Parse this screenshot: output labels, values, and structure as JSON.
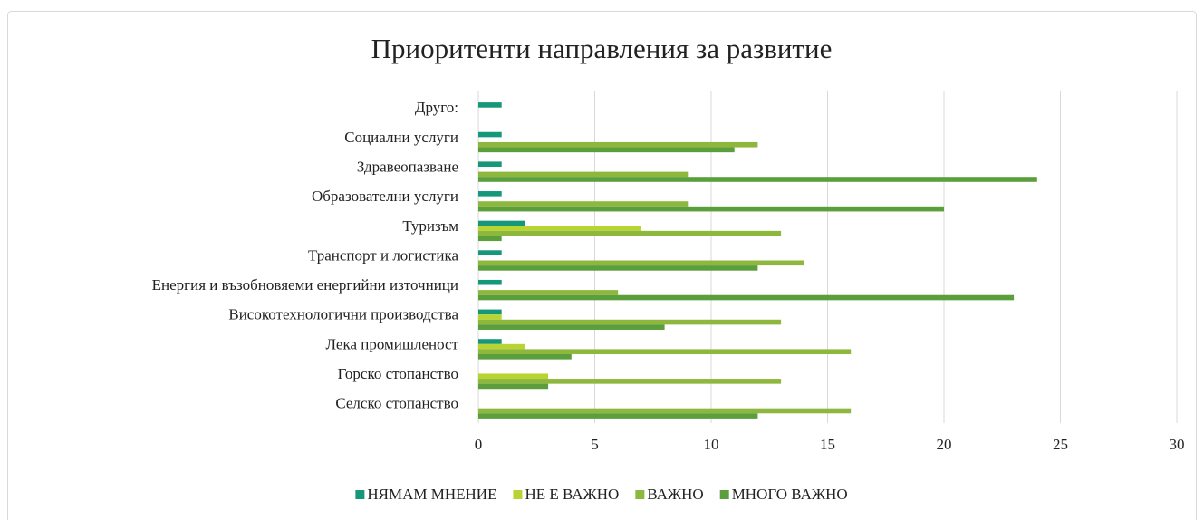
{
  "chart_data": {
    "type": "hbar",
    "title": "Приоритенти направления за развитие",
    "categories": [
      "Друго:",
      "Социални услуги",
      "Здравеопазване",
      "Образователни услуги ",
      "Туризъм",
      "Транспорт и логистика",
      "Енергия и възобновяеми енергийни източници",
      "Високотехнологични производства",
      "Лека промишленост",
      "Горско стопанство",
      "Селско стопанство"
    ],
    "series": [
      {
        "name": "НЯМАМ МНЕНИЕ",
        "color": "#17977a",
        "values": [
          1,
          1,
          1,
          1,
          2,
          1,
          1,
          1,
          1,
          0,
          0
        ]
      },
      {
        "name": "НЕ Е ВАЖНО",
        "color": "#b7d433",
        "values": [
          0,
          0,
          0,
          0,
          7,
          0,
          0,
          1,
          2,
          3,
          0
        ]
      },
      {
        "name": "ВАЖНО",
        "color": "#8db73d",
        "values": [
          0,
          12,
          9,
          9,
          13,
          14,
          6,
          13,
          16,
          13,
          16
        ]
      },
      {
        "name": "МНОГО ВАЖНО",
        "color": "#5b9e3c",
        "values": [
          0,
          11,
          24,
          20,
          1,
          12,
          23,
          8,
          4,
          3,
          12
        ]
      }
    ],
    "xlim": [
      0,
      30
    ],
    "xticks": [
      0,
      5,
      10,
      15,
      20,
      25,
      30
    ],
    "grid": true,
    "legend": "bottom"
  }
}
